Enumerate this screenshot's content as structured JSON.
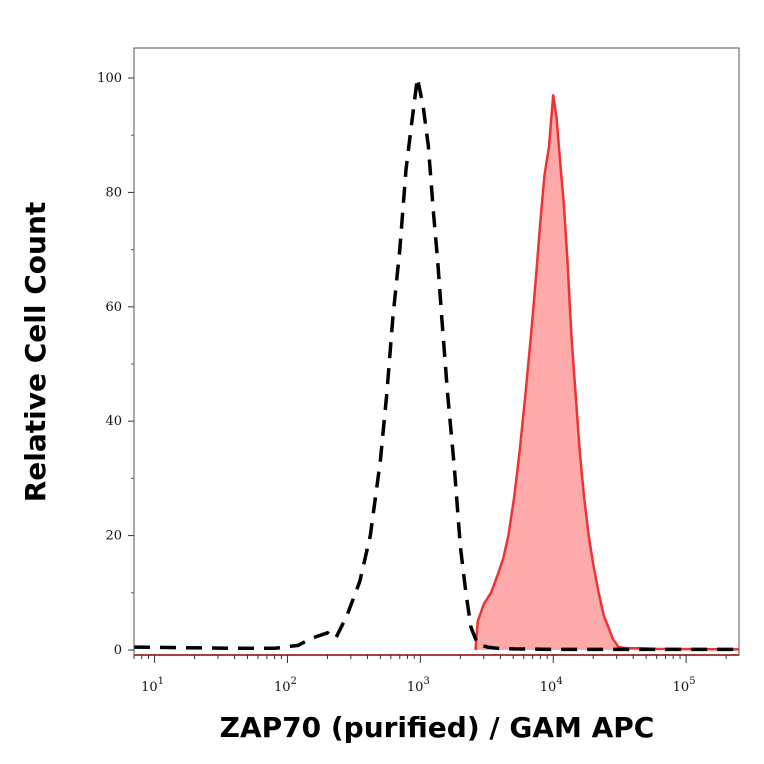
{
  "chart_data": {
    "type": "area",
    "xlabel": "ZAP70 (purified) / GAM APC",
    "ylabel": "Relative Cell Count",
    "x_scale": "log",
    "xlim": [
      7,
      250000
    ],
    "ylim": [
      0,
      100
    ],
    "y_ticks": [
      0,
      20,
      40,
      60,
      80,
      100
    ],
    "y_tick_labels": [
      "0",
      "20",
      "40",
      "60",
      "80",
      "100"
    ],
    "x_ticks": [
      10,
      100,
      1000,
      10000,
      100000
    ],
    "x_tick_labels": [
      {
        "base": "10",
        "exp": "1"
      },
      {
        "base": "10",
        "exp": "2"
      },
      {
        "base": "10",
        "exp": "3"
      },
      {
        "base": "10",
        "exp": "4"
      },
      {
        "base": "10",
        "exp": "5"
      }
    ],
    "grid": false,
    "series": [
      {
        "style": "dashed",
        "color": "#000000",
        "fill": "none",
        "points": [
          [
            7,
            0.5
          ],
          [
            40,
            0.3
          ],
          [
            80,
            0.3
          ],
          [
            120,
            0.8
          ],
          [
            150,
            2
          ],
          [
            200,
            3
          ],
          [
            230,
            2
          ],
          [
            280,
            6
          ],
          [
            350,
            12
          ],
          [
            420,
            20
          ],
          [
            500,
            33
          ],
          [
            560,
            45
          ],
          [
            620,
            58
          ],
          [
            700,
            70
          ],
          [
            780,
            84
          ],
          [
            860,
            92
          ],
          [
            950,
            100
          ],
          [
            1050,
            95
          ],
          [
            1150,
            88
          ],
          [
            1250,
            77
          ],
          [
            1350,
            68
          ],
          [
            1450,
            58
          ],
          [
            1600,
            45
          ],
          [
            1800,
            32
          ],
          [
            2000,
            18
          ],
          [
            2200,
            10
          ],
          [
            2400,
            4
          ],
          [
            2700,
            1
          ],
          [
            3200,
            0.5
          ],
          [
            3800,
            0.3
          ],
          [
            5000,
            0.2
          ],
          [
            10000,
            0.1
          ],
          [
            20000,
            0.1
          ],
          [
            250000,
            0.1
          ]
        ]
      },
      {
        "style": "solid",
        "color": "#ee3333",
        "fill": "#ffaaaa",
        "points": [
          [
            2600,
            0
          ],
          [
            2700,
            5
          ],
          [
            3000,
            8
          ],
          [
            3400,
            10
          ],
          [
            3800,
            13
          ],
          [
            4200,
            16
          ],
          [
            4600,
            20
          ],
          [
            5100,
            27
          ],
          [
            5600,
            35
          ],
          [
            6200,
            45
          ],
          [
            6800,
            55
          ],
          [
            7400,
            65
          ],
          [
            8000,
            75
          ],
          [
            8600,
            83
          ],
          [
            9300,
            88
          ],
          [
            10000,
            97
          ],
          [
            10600,
            93
          ],
          [
            11300,
            85
          ],
          [
            12000,
            78
          ],
          [
            12800,
            68
          ],
          [
            13700,
            55
          ],
          [
            14700,
            45
          ],
          [
            15800,
            35
          ],
          [
            17000,
            27
          ],
          [
            18500,
            20
          ],
          [
            20000,
            15
          ],
          [
            22000,
            10
          ],
          [
            24000,
            6
          ],
          [
            26000,
            4
          ],
          [
            28000,
            2
          ],
          [
            31000,
            0.5
          ],
          [
            36000,
            0.3
          ],
          [
            45000,
            0.3
          ],
          [
            60000,
            0.2
          ],
          [
            250000,
            0.1
          ]
        ]
      }
    ]
  }
}
